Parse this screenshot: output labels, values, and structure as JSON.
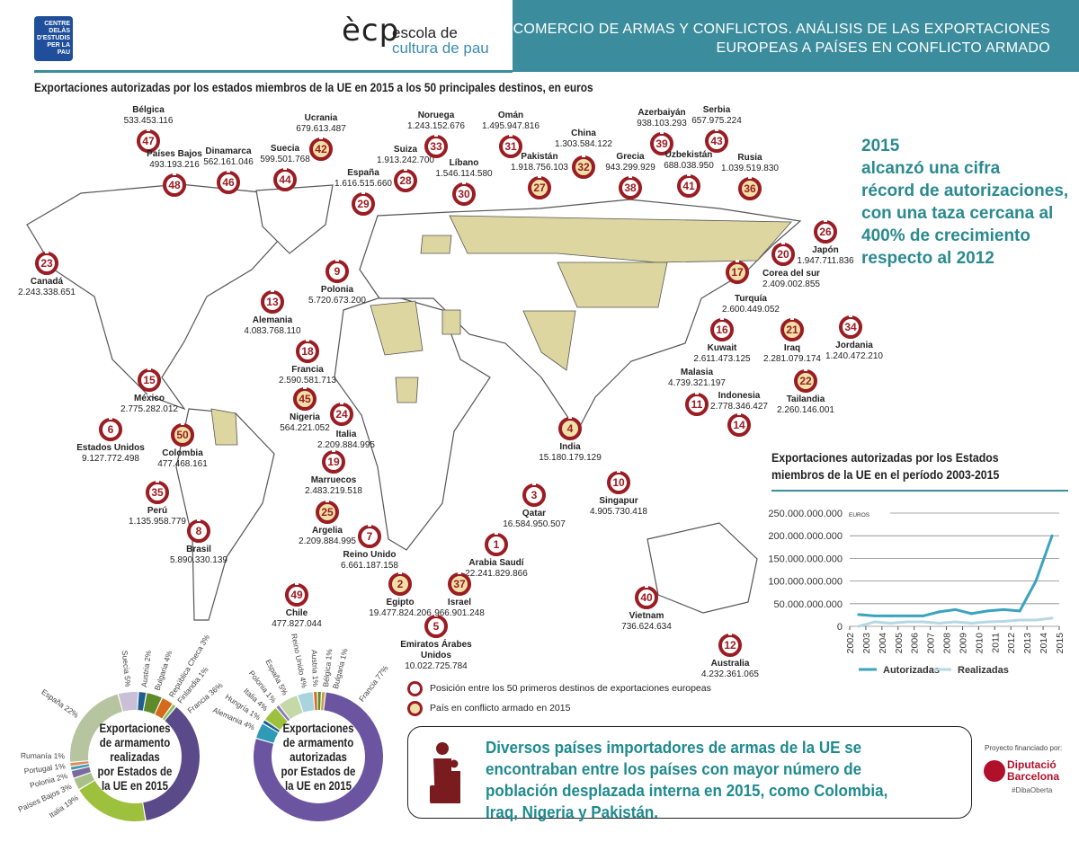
{
  "header": {
    "title_line1": "COMERCIO DE ARMAS Y CONFLICTOS. ANÁLISIS DE LAS EXPORTACIONES",
    "title_line2": "EUROPEAS A PAÍSES EN CONFLICTO ARMADO",
    "logo_centre_delas": "CENTRE DELÀS D'ESTUDIS PER LA PAU",
    "logo_ecp": "ècp",
    "logo_ecp_line1": "escola de",
    "logo_ecp_line2": "cultura de pau"
  },
  "subtitle": "Exportaciones autorizadas por los estados miembros de la UE en 2015  a los 50 principales destinos, en euros",
  "colors": {
    "marker": "#9b1c22",
    "conflict": "#eee0a6",
    "teal": "#3b8c9c",
    "autorizadas": "#3aa3bf",
    "realizadas": "#b5d8e2"
  },
  "markers": [
    {
      "rank": 1,
      "name": "Arabia Saudí",
      "value": "22.241.829.866",
      "conflict": false
    },
    {
      "rank": 2,
      "name": "Egipto",
      "value": "19.477.824.206",
      "conflict": true
    },
    {
      "rank": 3,
      "name": "Qatar",
      "value": "16.584.950.507",
      "conflict": false
    },
    {
      "rank": 4,
      "name": "India",
      "value": "15.180.179.129",
      "conflict": true
    },
    {
      "rank": 5,
      "name": "Emiratos Árabes Unidos",
      "value": "10.022.725.784",
      "conflict": false
    },
    {
      "rank": 6,
      "name": "Estados Unidos",
      "value": "9.127.772.498",
      "conflict": false
    },
    {
      "rank": 7,
      "name": "Reino Unido",
      "value": "6.661.187.158",
      "conflict": false
    },
    {
      "rank": 8,
      "name": "Brasil",
      "value": "5.890.330.139",
      "conflict": false
    },
    {
      "rank": 9,
      "name": "Polonia",
      "value": "5.720.673.200",
      "conflict": false
    },
    {
      "rank": 10,
      "name": "Singapur",
      "value": "4.905.730.418",
      "conflict": false
    },
    {
      "rank": 11,
      "name": "Malasia",
      "value": "4.739.321.197",
      "conflict": false
    },
    {
      "rank": 12,
      "name": "Australia",
      "value": "4.232.361.065",
      "conflict": false
    },
    {
      "rank": 13,
      "name": "Alemania",
      "value": "4.083.768.110",
      "conflict": false
    },
    {
      "rank": 14,
      "name": "Indonesia",
      "value": "2.778.346.427",
      "conflict": false
    },
    {
      "rank": 15,
      "name": "México",
      "value": "2.775.282.012",
      "conflict": false
    },
    {
      "rank": 16,
      "name": "Kuwait",
      "value": "2.611.473.125",
      "conflict": false
    },
    {
      "rank": 17,
      "name": "Turquía",
      "value": "2.600.449.052",
      "conflict": true
    },
    {
      "rank": 18,
      "name": "Francia",
      "value": "2.590.581.713",
      "conflict": false
    },
    {
      "rank": 19,
      "name": "Marruecos",
      "value": "2.483.219.518",
      "conflict": false
    },
    {
      "rank": 20,
      "name": "Corea del sur",
      "value": "2.409.002.855",
      "conflict": false
    },
    {
      "rank": 21,
      "name": "Iraq",
      "value": "2.281.079.174",
      "conflict": true
    },
    {
      "rank": 22,
      "name": "Tailandia",
      "value": "2.260.146.001",
      "conflict": true
    },
    {
      "rank": 23,
      "name": "Canadá",
      "value": "2.243.338.651",
      "conflict": false
    },
    {
      "rank": 24,
      "name": "Italia",
      "value": "2.209.884.995",
      "conflict": false
    },
    {
      "rank": 25,
      "name": "Argelia",
      "value": "2.209.884.995",
      "conflict": true
    },
    {
      "rank": 26,
      "name": "Japón",
      "value": "1.947.711.836",
      "conflict": false
    },
    {
      "rank": 27,
      "name": "Pakistán",
      "value": "1.918.756.103",
      "conflict": true
    },
    {
      "rank": 28,
      "name": "Suiza",
      "value": "1.913.242.700",
      "conflict": false
    },
    {
      "rank": 29,
      "name": "España",
      "value": "1.616.515.660",
      "conflict": false
    },
    {
      "rank": 30,
      "name": "Líbano",
      "value": "1.546.114.580",
      "conflict": false
    },
    {
      "rank": 31,
      "name": "Omán",
      "value": "1.495.947.816",
      "conflict": false
    },
    {
      "rank": 32,
      "name": "China",
      "value": "1.303.584.122",
      "conflict": true
    },
    {
      "rank": 33,
      "name": "Noruega",
      "value": "1.243.152.676",
      "conflict": false
    },
    {
      "rank": 34,
      "name": "Jordania",
      "value": "1.240.472.210",
      "conflict": false
    },
    {
      "rank": 35,
      "name": "Perú",
      "value": "1.135.958.779",
      "conflict": false
    },
    {
      "rank": 36,
      "name": "Rusia",
      "value": "1.039.519.830",
      "conflict": true
    },
    {
      "rank": 37,
      "name": "Israel",
      "value": "966.901.248",
      "conflict": true
    },
    {
      "rank": 38,
      "name": "Grecia",
      "value": "943.299.929",
      "conflict": false
    },
    {
      "rank": 39,
      "name": "Azerbaiyán",
      "value": "938.103.293",
      "conflict": false
    },
    {
      "rank": 40,
      "name": "Vietnam",
      "value": "736.624.634",
      "conflict": false
    },
    {
      "rank": 41,
      "name": "Uzbekistán",
      "value": "688.038.950",
      "conflict": false
    },
    {
      "rank": 42,
      "name": "Ucrania",
      "value": "679.613.487",
      "conflict": true
    },
    {
      "rank": 43,
      "name": "Serbia",
      "value": "657.975.224",
      "conflict": false
    },
    {
      "rank": 44,
      "name": "Suecia",
      "value": "599.501.768",
      "conflict": false
    },
    {
      "rank": 45,
      "name": "Nigeria",
      "value": "564.221.052",
      "conflict": true
    },
    {
      "rank": 46,
      "name": "Dinamarca",
      "value": "562.161.046",
      "conflict": false
    },
    {
      "rank": 47,
      "name": "Bélgica",
      "value": "533.453.116",
      "conflict": false
    },
    {
      "rank": 48,
      "name": "Países Bajos",
      "value": "493.193.216",
      "conflict": false
    },
    {
      "rank": 49,
      "name": "Chile",
      "value": "477.827.044",
      "conflict": false
    },
    {
      "rank": 50,
      "name": "Colombia",
      "value": "477.468.161",
      "conflict": true
    }
  ],
  "headline": [
    "2015",
    "alcanzó una cifra",
    "récord de autorizaciones,",
    "con una taza cercana al",
    "400% de crecimiento",
    "respecto al 2012"
  ],
  "legend": {
    "position": "Posición entre los 50 primeros destinos de exportaciones europeas",
    "conflict": "País en conflicto armado en 2015"
  },
  "callout": "Diversos países importadores de armas de la UE se encontraban entre los países con mayor número de población desplazada interna en 2015, como Colombia, Iraq, Nigeria y Pakistán.",
  "sponsor": {
    "label": "Proyecto financiado por:",
    "name_line1": "Diputació",
    "name_line2": "Barcelona",
    "hashtag": "#DibaOberta"
  },
  "chart_data": [
    {
      "type": "line",
      "title": "Exportaciones autorizadas por los Estados miembros de la UE  en el período 2003-2015",
      "ylabel": "EUROS",
      "ylim": [
        0,
        250000000000
      ],
      "yticks": [
        "0",
        "50.000.000.000",
        "100.000.000.000",
        "150.000.000.000",
        "200.000.000.000",
        "250.000.000.000"
      ],
      "xticks": [
        "2002",
        "2003",
        "2004",
        "2005",
        "2006",
        "2007",
        "2008",
        "2009",
        "2010",
        "2011",
        "2012",
        "2013",
        "2014",
        "2015"
      ],
      "x": [
        2003,
        2004,
        2005,
        2006,
        2007,
        2008,
        2009,
        2010,
        2011,
        2012,
        2013,
        2014,
        2015
      ],
      "series": [
        {
          "name": "Autorizadas",
          "values": [
            26000000000,
            23000000000,
            23000000000,
            23000000000,
            23000000000,
            32000000000,
            37000000000,
            28000000000,
            34000000000,
            37000000000,
            34000000000,
            100000000000,
            200000000000
          ]
        },
        {
          "name": "Realizadas",
          "values": [
            0,
            10000000000,
            7000000000,
            10000000000,
            10000000000,
            7000000000,
            10000000000,
            7000000000,
            10000000000,
            11000000000,
            14000000000,
            14000000000,
            18000000000
          ]
        }
      ],
      "legend": "bottom",
      "grid": true
    },
    {
      "type": "pie",
      "title": "Exportaciones de armamento realizadas por Estados de la UE en 2015",
      "slices": [
        {
          "label": "Francia",
          "value": 36,
          "color": "#5b4a8a"
        },
        {
          "label": "Italia",
          "value": 19,
          "color": "#9dc03d"
        },
        {
          "label": "Países Bajos",
          "value": 3,
          "color": "#a9c08a"
        },
        {
          "label": "Polonia",
          "value": 2,
          "color": "#7a6aa0"
        },
        {
          "label": "Portugal",
          "value": 1,
          "color": "#3e9bb0"
        },
        {
          "label": "Rumanía",
          "value": 1,
          "color": "#e08a5a"
        },
        {
          "label": "España",
          "value": 22,
          "color": "#b6c4a0"
        },
        {
          "label": "Suecia",
          "value": 5,
          "color": "#c9bfd6"
        },
        {
          "label": "Austria",
          "value": 2,
          "color": "#1f5f8f"
        },
        {
          "label": "Bulgaria",
          "value": 4,
          "color": "#5d8a2a"
        },
        {
          "label": "República Checa",
          "value": 3,
          "color": "#d66a1c"
        },
        {
          "label": "Finlandia",
          "value": 1,
          "color": "#8ac06a"
        }
      ]
    },
    {
      "type": "pie",
      "title": "Exportaciones de armamento autorizadas por Estados de la UE en 2015",
      "slices": [
        {
          "label": "Francia",
          "value": 77,
          "color": "#6b54a0"
        },
        {
          "label": "Alemania",
          "value": 4,
          "color": "#2e9ab5"
        },
        {
          "label": "Hungría",
          "value": 1,
          "color": "#1f5f8f"
        },
        {
          "label": "Italia",
          "value": 4,
          "color": "#9dc03d"
        },
        {
          "label": "Polonia",
          "value": 1,
          "color": "#8a7ab8"
        },
        {
          "label": "España",
          "value": 5,
          "color": "#c5d8a8"
        },
        {
          "label": "Reino Unido",
          "value": 4,
          "color": "#a8d4e0"
        },
        {
          "label": "Austria",
          "value": 1,
          "color": "#d66a1c"
        },
        {
          "label": "Bélgica",
          "value": 1,
          "color": "#5d8a2a"
        },
        {
          "label": "Bulgaria",
          "value": 1,
          "color": "#c9a040"
        }
      ]
    }
  ],
  "donut_titles": {
    "realizadas": [
      "Exportaciones",
      "de armamento",
      "realizadas",
      "por Estados de",
      "la UE en 2015"
    ],
    "autorizadas": [
      "Exportaciones",
      "de armamento",
      "autorizadas",
      "por Estados de",
      "la UE en 2015"
    ]
  }
}
